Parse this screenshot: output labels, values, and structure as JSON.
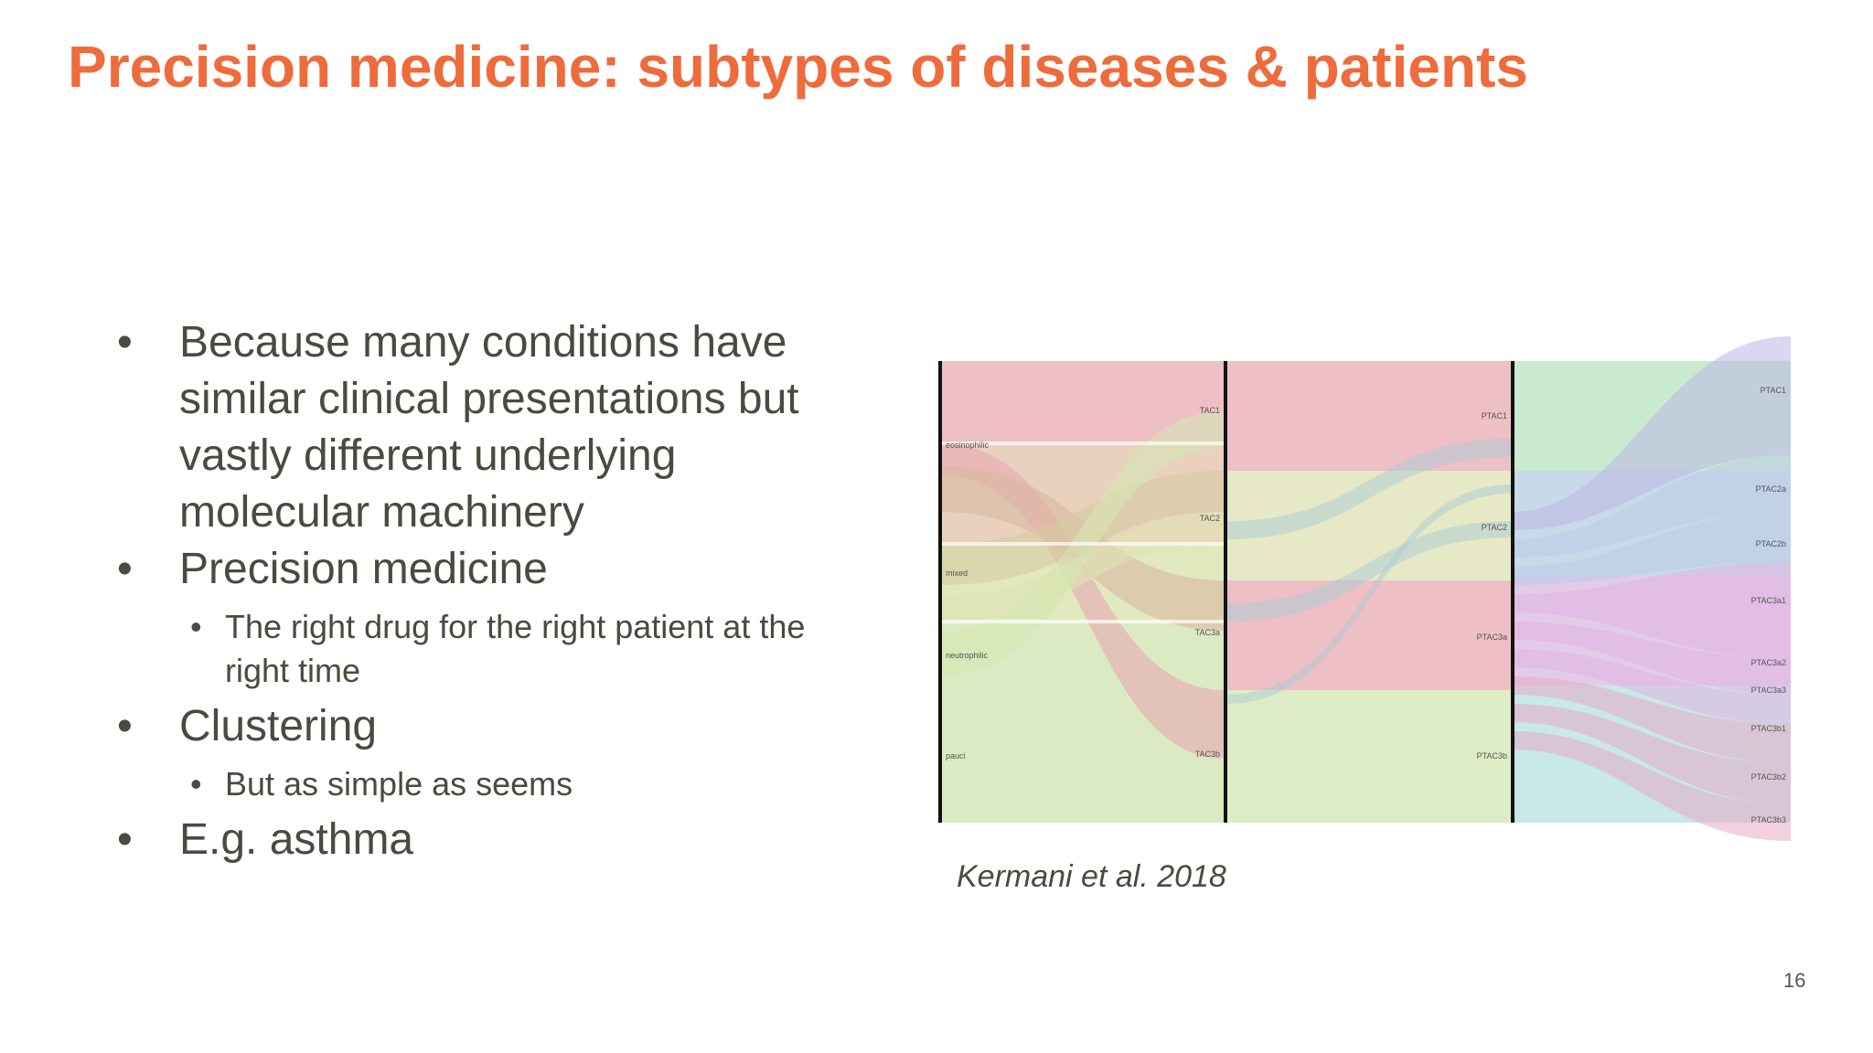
{
  "slide": {
    "title": "Precision medicine: subtypes of diseases & patients",
    "bullets": [
      {
        "text": "Because many conditions have similar clinical presentations but vastly different underlying molecular machinery"
      },
      {
        "text": "Precision medicine"
      },
      {
        "text": "The right drug for the right patient at the right time"
      },
      {
        "text": "Clustering"
      },
      {
        "text": "But as simple as seems"
      },
      {
        "text": "E.g. asthma"
      }
    ],
    "bullet_glyph": "•",
    "caption": "Kermani et al. 2018",
    "page_number": "16"
  },
  "figure": {
    "type": "sankey",
    "columns": [
      {
        "nodes": [
          {
            "label": "eosinophilic",
            "color": "#e8a9b2"
          },
          {
            "label": "mixed",
            "color": "#e2c1a8"
          },
          {
            "label": "neutrophilic",
            "color": "#d7e0a8"
          },
          {
            "label": "pauci",
            "color": "#cfe3ad"
          }
        ]
      },
      {
        "nodes": [
          {
            "label": "TAC1",
            "color": "#e8a9b2"
          },
          {
            "label": "TAC2",
            "color": "#dfe2b3"
          },
          {
            "label": "TAC3a",
            "color": "#e8a9b2"
          },
          {
            "label": "TAC3b",
            "color": "#d3e6b3"
          }
        ]
      },
      {
        "nodes": [
          {
            "label": "PTAC1",
            "color": "#b7e3bd"
          },
          {
            "label": "PTAC2",
            "color": "#b5cde2"
          },
          {
            "label": "PTAC3a",
            "color": "#d8b9e0"
          },
          {
            "label": "PTAC3b",
            "color": "#b6e0e1"
          }
        ]
      },
      {
        "nodes": [
          {
            "label": "PTAC1",
            "color": "#bcb6e6"
          },
          {
            "label": "PTAC2a",
            "color": "#b9cbe8"
          },
          {
            "label": "PTAC2b",
            "color": "#b9cbe8"
          },
          {
            "label": "PTAC3a1",
            "color": "#e2b3e2"
          },
          {
            "label": "PTAC3a2",
            "color": "#e2b3e2"
          },
          {
            "label": "PTAC3a3",
            "color": "#e2b3e2"
          },
          {
            "label": "PTAC3b1",
            "color": "#e8a9c2"
          },
          {
            "label": "PTAC3b2",
            "color": "#e8a9c2"
          },
          {
            "label": "PTAC3b3",
            "color": "#e8a9c2"
          }
        ]
      }
    ]
  }
}
